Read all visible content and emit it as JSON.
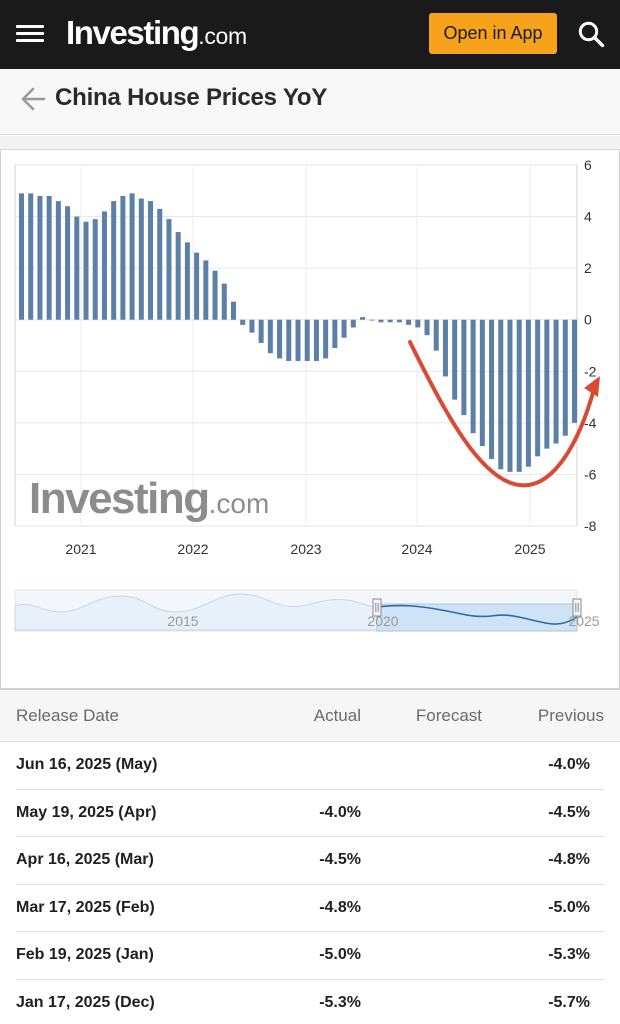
{
  "header": {
    "logo_brand": "Investing",
    "logo_suffix": ".com",
    "open_app_label": "Open in App"
  },
  "title": {
    "page_title": "China House Prices YoY"
  },
  "chart_data": {
    "type": "bar",
    "xlabel": "",
    "ylabel": "",
    "ylim": [
      -8,
      6
    ],
    "y_ticks": [
      "6",
      "4",
      "2",
      "0",
      "-2",
      "-4",
      "-6",
      "-8"
    ],
    "x_tick_labels": [
      "2021",
      "2022",
      "2023",
      "2024",
      "2025"
    ],
    "series": [
      {
        "values": [
          4.9,
          4.9,
          4.8,
          4.8,
          4.6,
          4.4,
          4.0,
          3.8,
          3.9,
          4.2,
          4.6,
          4.8,
          4.9,
          4.7,
          4.6,
          4.3,
          3.9,
          3.4,
          3.0,
          2.6,
          2.3,
          1.9,
          1.4,
          0.7,
          -0.2,
          -0.5,
          -0.9,
          -1.3,
          -1.5,
          -1.6,
          -1.6,
          -1.6,
          -1.6,
          -1.5,
          -1.1,
          -0.7,
          -0.3,
          0.1,
          0.0,
          -0.1,
          -0.1,
          -0.1,
          -0.2,
          -0.3,
          -0.6,
          -1.2,
          -2.2,
          -3.1,
          -3.7,
          -4.4,
          -4.9,
          -5.4,
          -5.8,
          -5.9,
          -5.9,
          -5.7,
          -5.3,
          -5.0,
          -4.8,
          -4.5,
          -4.0
        ],
        "color": "#5b7fa6"
      }
    ],
    "annotation": {
      "type": "red-curved-arrow",
      "color": "#d94a34"
    },
    "watermark": "Investing.com",
    "navigator": {
      "labels": [
        "2015",
        "2020",
        "2025"
      ],
      "fill_color": "#cfe3f7",
      "line_color": "#2f6aa3"
    },
    "grid": true
  },
  "table": {
    "headers": {
      "release_date": "Release Date",
      "actual": "Actual",
      "forecast": "Forecast",
      "previous": "Previous"
    },
    "rows": [
      {
        "date": "Jun 16, 2025 (May)",
        "actual": "",
        "forecast": "",
        "previous": "-4.0%"
      },
      {
        "date": "May 19, 2025 (Apr)",
        "actual": "-4.0%",
        "forecast": "",
        "previous": "-4.5%"
      },
      {
        "date": "Apr 16, 2025 (Mar)",
        "actual": "-4.5%",
        "forecast": "",
        "previous": "-4.8%"
      },
      {
        "date": "Mar 17, 2025 (Feb)",
        "actual": "-4.8%",
        "forecast": "",
        "previous": "-5.0%"
      },
      {
        "date": "Feb 19, 2025 (Jan)",
        "actual": "-5.0%",
        "forecast": "",
        "previous": "-5.3%"
      },
      {
        "date": "Jan 17, 2025 (Dec)",
        "actual": "-5.3%",
        "forecast": "",
        "previous": "-5.7%"
      }
    ]
  },
  "colors": {
    "topbar_bg": "#1a1a1a",
    "accent": "#f7a21b",
    "bar": "#5b7fa6",
    "arrow": "#d94a34"
  }
}
